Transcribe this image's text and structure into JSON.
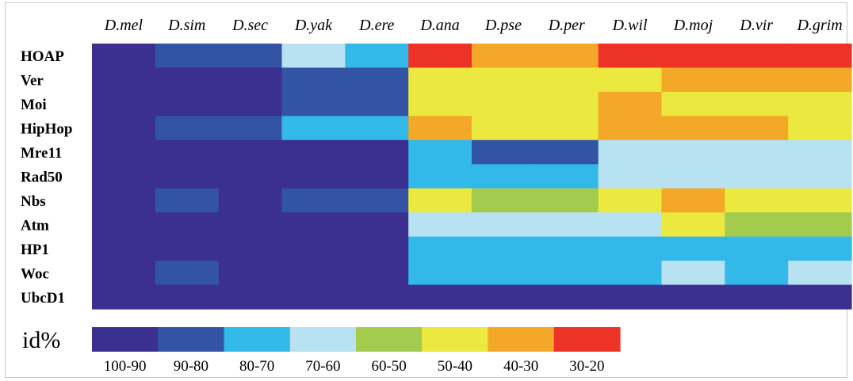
{
  "chart_data": {
    "type": "heatmap",
    "columns": [
      "D.mel",
      "D.sim",
      "D.sec",
      "D.yak",
      "D.ere",
      "D.ana",
      "D.pse",
      "D.per",
      "D.wil",
      "D.moj",
      "D.vir",
      "D.grim"
    ],
    "rows": [
      "HOAP",
      "Ver",
      "Moi",
      "HipHop",
      "Mre11",
      "Rad50",
      "Nbs",
      "Atm",
      "HP1",
      "Woc",
      "UbcD1"
    ],
    "bins": [
      {
        "label": "100-90",
        "color": "#3b2f8f"
      },
      {
        "label": "90-80",
        "color": "#3353a4"
      },
      {
        "label": "80-70",
        "color": "#33b8ea"
      },
      {
        "label": "70-60",
        "color": "#b8e2f1"
      },
      {
        "label": "60-50",
        "color": "#a3cc4f"
      },
      {
        "label": "50-40",
        "color": "#ebe83f"
      },
      {
        "label": "40-30",
        "color": "#f4a828"
      },
      {
        "label": "30-20",
        "color": "#ee3326"
      }
    ],
    "values": [
      [
        0,
        1,
        1,
        3,
        2,
        7,
        6,
        6,
        7,
        7,
        7,
        7
      ],
      [
        0,
        0,
        0,
        1,
        1,
        5,
        5,
        5,
        5,
        6,
        6,
        6
      ],
      [
        0,
        0,
        0,
        1,
        1,
        5,
        5,
        5,
        6,
        5,
        5,
        5
      ],
      [
        0,
        1,
        1,
        2,
        2,
        6,
        5,
        5,
        6,
        6,
        6,
        5
      ],
      [
        0,
        0,
        0,
        0,
        0,
        2,
        1,
        1,
        3,
        3,
        3,
        3
      ],
      [
        0,
        0,
        0,
        0,
        0,
        2,
        2,
        2,
        3,
        3,
        3,
        3
      ],
      [
        0,
        1,
        0,
        1,
        1,
        5,
        4,
        4,
        5,
        6,
        5,
        5
      ],
      [
        0,
        0,
        0,
        0,
        0,
        3,
        3,
        3,
        3,
        5,
        4,
        4
      ],
      [
        0,
        0,
        0,
        0,
        0,
        2,
        2,
        2,
        2,
        2,
        2,
        2
      ],
      [
        0,
        1,
        0,
        0,
        0,
        2,
        2,
        2,
        2,
        3,
        2,
        3
      ],
      [
        0,
        0,
        0,
        0,
        0,
        0,
        0,
        0,
        0,
        0,
        0,
        0
      ]
    ],
    "legend_title": "id%",
    "legend_placement": "bottom-left",
    "grid": false
  }
}
